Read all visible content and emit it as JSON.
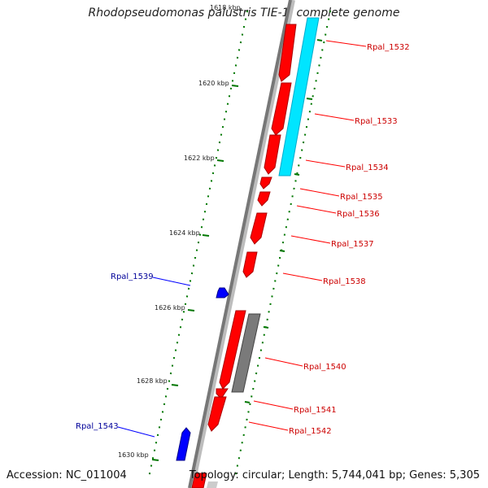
{
  "title": "Rhodopseudomonas palustris TIE-1, complete genome",
  "footer": {
    "accession": "Accession: NC_011004",
    "topology": "Topology: circular; Length: 5,744,041 bp; Genes: 5,305"
  },
  "colors": {
    "forward_gene": "#ff0000",
    "reverse_gene": "#0000ff",
    "rna_feature": "#00ffff",
    "other_feature": "#808080",
    "tick": "#007700",
    "forward_label": "#cc0000",
    "reverse_label": "#000099"
  },
  "kbp_ticks": [
    "1618 kbp",
    "1620 kbp",
    "1622 kbp",
    "1624 kbp",
    "1626 kbp",
    "1628 kbp",
    "1630 kbp"
  ],
  "gene_labels_forward": [
    "Rpal_1532",
    "Rpal_1533",
    "Rpal_1534",
    "Rpal_1535",
    "Rpal_1536",
    "Rpal_1537",
    "Rpal_1538",
    "Rpal_1540",
    "Rpal_1541",
    "Rpal_1542"
  ],
  "gene_labels_reverse": [
    "Rpal_1539",
    "Rpal_1543"
  ]
}
